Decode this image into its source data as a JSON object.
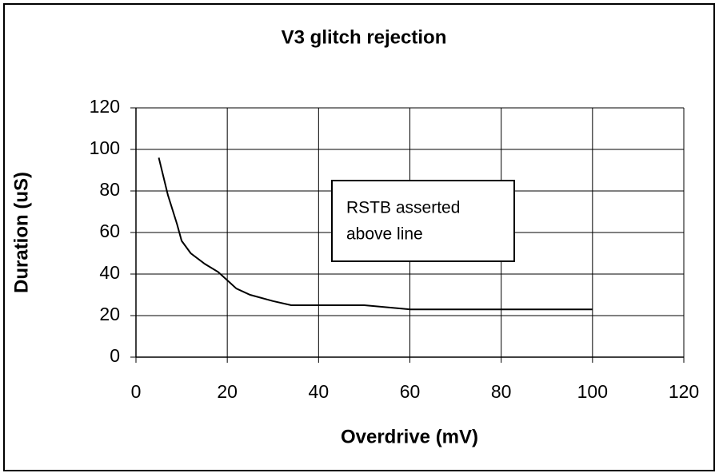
{
  "chart_data": {
    "type": "line",
    "title": "V3 glitch rejection",
    "x_label": "Overdrive (mV)",
    "y_label": "Duration (uS)",
    "x": [
      5,
      7,
      9,
      10,
      12,
      15,
      18,
      20,
      22,
      25,
      30,
      34,
      40,
      50,
      60,
      70,
      80,
      90,
      100
    ],
    "values": [
      96,
      78,
      64,
      56,
      50,
      45,
      41,
      37,
      33,
      30,
      27,
      25,
      25,
      25,
      23,
      23,
      23,
      23,
      23
    ],
    "color": "#000000",
    "xlim": [
      0,
      120
    ],
    "xticks": [
      0,
      20,
      40,
      60,
      80,
      100,
      120
    ],
    "ylim": [
      0,
      120
    ],
    "yticks": [
      0,
      20,
      40,
      60,
      80,
      100,
      120
    ],
    "grid": true,
    "annotation": {
      "lines": [
        "RSTB asserted",
        "above line"
      ]
    }
  }
}
